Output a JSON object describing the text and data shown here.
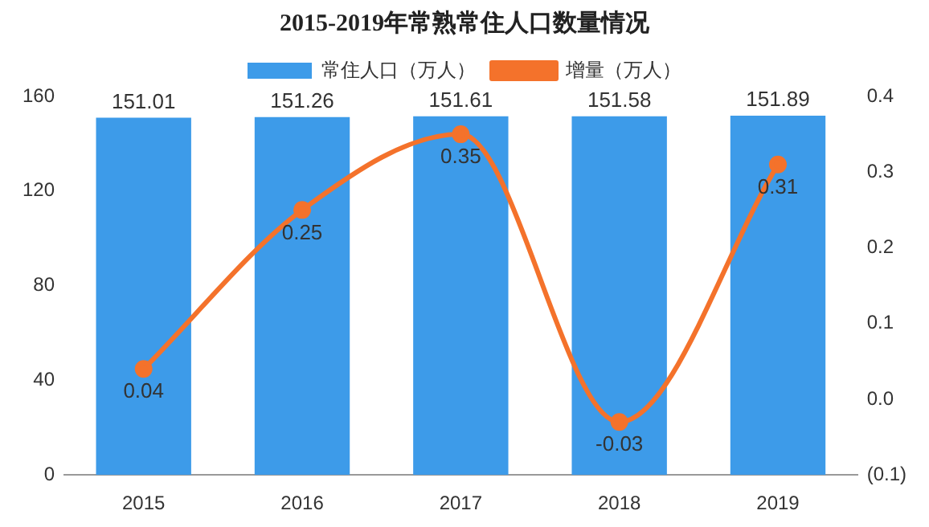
{
  "chart_data": {
    "type": "bar",
    "title": "2015-2019年常熟常住人口数量情况",
    "categories": [
      "2015",
      "2016",
      "2017",
      "2018",
      "2019"
    ],
    "series": [
      {
        "name": "常住人口（万人）",
        "color": "#3d9be9",
        "values": [
          151.01,
          151.26,
          151.61,
          151.58,
          151.89
        ]
      },
      {
        "name": "增量（万人）",
        "type": "line",
        "axis": "y2",
        "color": "#f4722b",
        "values": [
          0.04,
          0.25,
          0.35,
          -0.03,
          0.31
        ]
      }
    ],
    "ylim": [
      0,
      160
    ],
    "yticks": [
      0,
      40,
      80,
      120,
      160
    ],
    "y2lim": [
      -0.1,
      0.4
    ],
    "y2ticks": [
      {
        "value": -0.1,
        "label": "(0.1)"
      },
      {
        "value": 0,
        "label": "0.0"
      },
      0.1,
      0.2,
      0.3,
      0.4
    ],
    "data_labels": true,
    "legend": "top",
    "grid": false,
    "marker": "circle"
  }
}
